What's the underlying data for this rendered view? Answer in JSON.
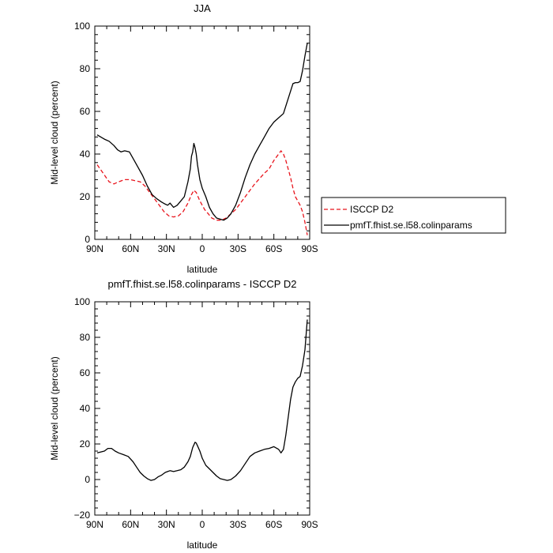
{
  "chart_data": [
    {
      "type": "line",
      "title": "JJA",
      "xlabel": "latitude",
      "ylabel": "Mid-level cloud (percent)",
      "xlim": [
        90,
        -90
      ],
      "ylim": [
        0,
        100
      ],
      "xticks": [
        90,
        60,
        30,
        0,
        -30,
        -60,
        -90
      ],
      "xtick_labels": [
        "90N",
        "60N",
        "30N",
        "0",
        "30S",
        "60S",
        "90S"
      ],
      "yticks": [
        0,
        20,
        40,
        60,
        80,
        100
      ],
      "ytick_labels": [
        "0",
        "20",
        "40",
        "60",
        "80",
        "100"
      ],
      "legend_position": "right",
      "series": [
        {
          "name": "ISCCP D2",
          "color": "#e8141c",
          "dash": "dashed",
          "x": [
            88,
            83,
            78,
            74,
            70,
            65,
            60,
            56,
            52,
            48,
            44,
            40,
            36,
            32,
            28,
            24,
            20,
            16,
            12,
            9,
            7,
            5,
            2,
            0,
            -2,
            -5,
            -8,
            -12,
            -16,
            -18,
            -20,
            -24,
            -28,
            -32,
            -36,
            -40,
            -44,
            -48,
            -52,
            -56,
            -60,
            -64,
            -66,
            -68,
            -70,
            -72,
            -74,
            -76,
            -78,
            -80,
            -82,
            -84,
            -86,
            -88
          ],
          "y": [
            35,
            31,
            27,
            26,
            27,
            28,
            28,
            27.5,
            27,
            25,
            22,
            19,
            16,
            13,
            11,
            10.5,
            11,
            13,
            17,
            21,
            23,
            22,
            18,
            16,
            14,
            12,
            10,
            9,
            9,
            9.5,
            10,
            12,
            14,
            17,
            20,
            23,
            26,
            28.5,
            31,
            33,
            37,
            40,
            41.5,
            40,
            37,
            33,
            29,
            24,
            20,
            18,
            16,
            13,
            8,
            2
          ]
        },
        {
          "name": "pmfT.fhist.se.l58.colinparams",
          "color": "#000000",
          "dash": "solid",
          "x": [
            88,
            85,
            82,
            78,
            74,
            71,
            68,
            65,
            61,
            58,
            54,
            50,
            46,
            42,
            38,
            34,
            31,
            29,
            27,
            24,
            21,
            18,
            15,
            12,
            10,
            9,
            8,
            7,
            6,
            5,
            4,
            2,
            0,
            -3,
            -6,
            -9,
            -12,
            -15,
            -18,
            -21,
            -24,
            -28,
            -32,
            -36,
            -40,
            -44,
            -48,
            -52,
            -56,
            -60,
            -64,
            -68,
            -72,
            -76,
            -78,
            -80,
            -82,
            -84,
            -86,
            -88
          ],
          "y": [
            49,
            48,
            47,
            46,
            44,
            42,
            41,
            41.5,
            41,
            38,
            34,
            30,
            25,
            21,
            19,
            17.5,
            16.5,
            16,
            17,
            15,
            16,
            18,
            20,
            27,
            33,
            39,
            41,
            45,
            43,
            40,
            35,
            28,
            24,
            20,
            15,
            12,
            10,
            9.5,
            9,
            10,
            12,
            16,
            22,
            29,
            35,
            40,
            44,
            48,
            52,
            55,
            57,
            59,
            66,
            73,
            73.5,
            73.5,
            74,
            79,
            86,
            92
          ]
        }
      ]
    },
    {
      "type": "line",
      "title": "pmfT.fhist.se.l58.colinparams - ISCCP D2",
      "xlabel": "latitude",
      "ylabel": "Mid-level cloud (percent)",
      "xlim": [
        90,
        -90
      ],
      "ylim": [
        -20,
        100
      ],
      "xticks": [
        90,
        60,
        30,
        0,
        -30,
        -60,
        -90
      ],
      "xtick_labels": [
        "90N",
        "60N",
        "30N",
        "0",
        "30S",
        "60S",
        "90S"
      ],
      "yticks": [
        -20,
        0,
        20,
        40,
        60,
        80,
        100
      ],
      "ytick_labels": [
        "−20",
        "0",
        "20",
        "40",
        "60",
        "80",
        "100"
      ],
      "series": [
        {
          "color": "#000000",
          "dash": "solid",
          "x": [
            88,
            85,
            82,
            79,
            76,
            73,
            70,
            66,
            62,
            58,
            55,
            52,
            49,
            46,
            43,
            40,
            37,
            34,
            31,
            29,
            27,
            24,
            21,
            18,
            15,
            12,
            10,
            8,
            6,
            5,
            4,
            2,
            0,
            -3,
            -6,
            -9,
            -12,
            -15,
            -18,
            -21,
            -24,
            -28,
            -32,
            -36,
            -40,
            -44,
            -48,
            -52,
            -56,
            -60,
            -64,
            -66,
            -68,
            -70,
            -72,
            -74,
            -76,
            -78,
            -80,
            -82,
            -84,
            -86,
            -88
          ],
          "y": [
            15,
            15.5,
            16,
            17.5,
            17.5,
            16,
            15,
            14,
            13,
            10,
            7,
            4,
            2,
            0.5,
            -0.5,
            0,
            1.5,
            2.5,
            4,
            4.5,
            5,
            4.5,
            5,
            5.5,
            7,
            10,
            13,
            18,
            21,
            20.5,
            19,
            16,
            12,
            8,
            6,
            4,
            2,
            0.5,
            0,
            -0.5,
            0,
            2,
            5,
            9,
            13,
            15,
            16,
            17,
            17.5,
            18.5,
            17,
            15,
            17,
            25,
            35,
            45,
            52,
            55,
            57,
            58,
            64,
            73,
            90
          ]
        }
      ]
    }
  ]
}
